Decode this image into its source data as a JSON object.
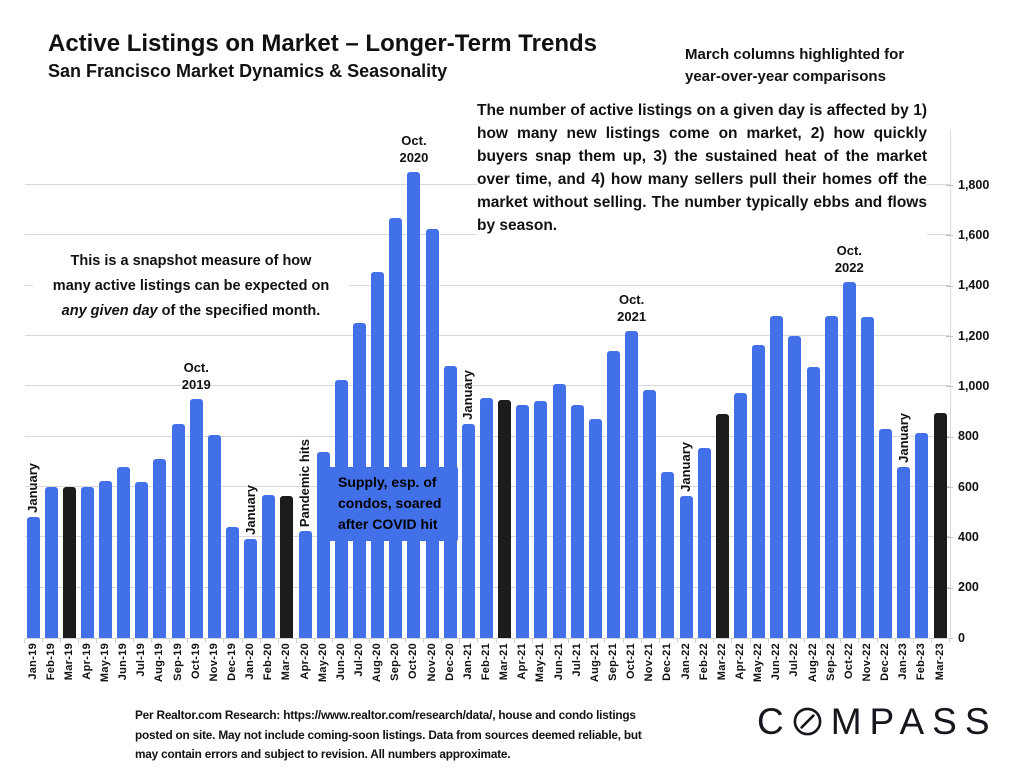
{
  "page": {
    "title": "Active Listings on Market – Longer-Term Trends",
    "subtitle": "San Francisco Market Dynamics & Seasonality",
    "top_right_note_line1": "March columns highlighted for",
    "top_right_note_line2": "year-over-year comparisons",
    "description": "The number of active listings on a given day is affected by 1) how many new listings come on market, 2) how quickly buyers snap them up, 3) the sustained heat of the market over time, and 4) how many sellers pull their homes off the market without selling. The number typically ebbs and flows by season.",
    "snapshot_note": {
      "line1": "This is a snapshot measure of how",
      "line2": "many active listings can be expected on",
      "line3_italic": "any given day",
      "line3_rest": " of the specified month."
    },
    "callout": {
      "line1": "Supply, esp. of",
      "line2": "condos, soared",
      "line3": "after COVID hit"
    },
    "footer": {
      "line1": "Per Realtor.com Research:  https://www.realtor.com/research/data/, house and condo listings",
      "line2": "posted on site. May not include coming-soon listings. Data from sources deemed reliable, but",
      "line3": "may contain errors and subject to revision. All numbers approximate.",
      "logo_before_o": "C",
      "logo_after_o": "MPASS",
      "logo_name": "COMPASS"
    }
  },
  "colors": {
    "bar_blue": "#4270e8",
    "bar_black": "#1c1c1c",
    "gridline": "#d9d9d9",
    "text": "#111111"
  },
  "chart_data": {
    "type": "bar",
    "title": "Active Listings on Market – Longer-Term Trends",
    "subtitle": "San Francisco Market Dynamics & Seasonality",
    "xlabel": "",
    "ylabel": "",
    "ylim": [
      0,
      1900
    ],
    "grid": "horizontal",
    "legend": "none",
    "series_name": "Active listings on a given day (approximate)",
    "categories": [
      "Jan-19",
      "Feb-19",
      "Mar-19",
      "Apr-19",
      "May-19",
      "Jun-19",
      "Jul-19",
      "Aug-19",
      "Sep-19",
      "Oct-19",
      "Nov-19",
      "Dec-19",
      "Jan-20",
      "Feb-20",
      "Mar-20",
      "Apr-20",
      "May-20",
      "Jun-20",
      "Jul-20",
      "Aug-20",
      "Sep-20",
      "Oct-20",
      "Nov-20",
      "Dec-20",
      "Jan-21",
      "Feb-21",
      "Mar-21",
      "Apr-21",
      "May-21",
      "Jun-21",
      "Jul-21",
      "Aug-21",
      "Sep-21",
      "Oct-21",
      "Nov-21",
      "Dec-21",
      "Jan-22",
      "Feb-22",
      "Mar-22",
      "Apr-22",
      "May-22",
      "Jun-22",
      "Jul-22",
      "Aug-22",
      "Sep-22",
      "Oct-22",
      "Nov-22",
      "Dec-22",
      "Jan-23",
      "Feb-23",
      "Mar-23"
    ],
    "values": [
      480,
      600,
      600,
      600,
      625,
      680,
      620,
      710,
      850,
      950,
      805,
      440,
      395,
      570,
      565,
      425,
      740,
      1025,
      1250,
      1455,
      1670,
      1850,
      1625,
      1080,
      850,
      955,
      945,
      925,
      940,
      1010,
      925,
      870,
      1140,
      1220,
      985,
      660,
      565,
      755,
      890,
      975,
      1165,
      1280,
      1200,
      1075,
      1280,
      1415,
      1275,
      830,
      680,
      815,
      895
    ],
    "highlighted_categories": [
      "Mar-19",
      "Mar-20",
      "Mar-21",
      "Mar-22",
      "Mar-23"
    ],
    "highlight_meaning": "March columns highlighted for year-over-year comparisons",
    "y_ticks": [
      {
        "value": 0,
        "label": "0"
      },
      {
        "value": 200,
        "label": "200"
      },
      {
        "value": 400,
        "label": "400"
      },
      {
        "value": 600,
        "label": "600"
      },
      {
        "value": 800,
        "label": "800"
      },
      {
        "value": 1000,
        "label": "1,000"
      },
      {
        "value": 1200,
        "label": "1,200"
      },
      {
        "value": 1400,
        "label": "1,400"
      },
      {
        "value": 1600,
        "label": "1,600"
      },
      {
        "value": 1800,
        "label": "1,800"
      }
    ],
    "annotations": {
      "january": {
        "text": "January",
        "categories": [
          "Jan-19",
          "Jan-20",
          "Jan-21",
          "Jan-22",
          "Jan-23"
        ]
      },
      "pandemic": {
        "text": "Pandemic hits",
        "category": "Apr-20"
      },
      "october_peaks": [
        {
          "line1": "Oct.",
          "line2": "2019",
          "category": "Oct-19"
        },
        {
          "line1": "Oct.",
          "line2": "2020",
          "category": "Oct-20"
        },
        {
          "line1": "Oct.",
          "line2": "2021",
          "category": "Oct-21"
        },
        {
          "line1": "Oct.",
          "line2": "2022",
          "category": "Oct-22"
        }
      ]
    }
  }
}
